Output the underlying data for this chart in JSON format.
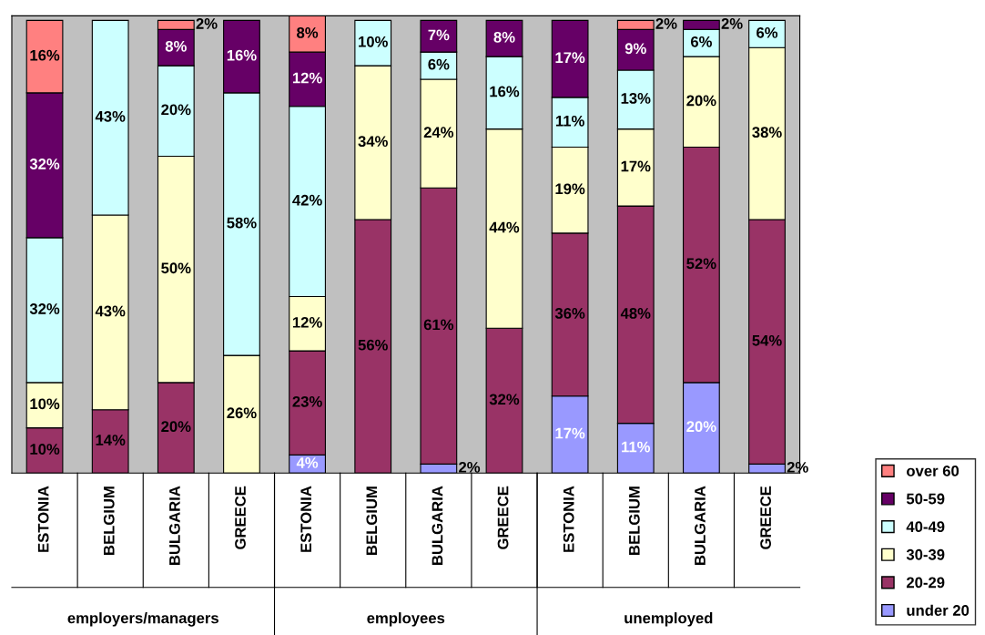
{
  "chart_data": {
    "type": "bar",
    "stacked": true,
    "categories": [
      "ESTONIA",
      "BELGIUM",
      "BULGARIA",
      "GREECE",
      "ESTONIA",
      "BELGIUM",
      "BULGARIA",
      "GREECE",
      "ESTONIA",
      "BELGIUM",
      "BULGARIA",
      "GREECE"
    ],
    "annotations": [
      "employers/managers",
      "employees",
      "unemployed"
    ],
    "ylim": [
      0,
      101
    ],
    "tick_labels": "x",
    "grid": false,
    "legend": "bottom right",
    "series": [
      {
        "name": "under 20",
        "color": "#9999ff",
        "values": [
          null,
          null,
          null,
          null,
          4,
          null,
          2,
          null,
          17,
          11,
          20,
          2
        ],
        "value_labels": [
          null,
          null,
          null,
          null,
          "4%",
          null,
          "2%",
          null,
          "17%",
          "11%",
          "20%",
          "2%"
        ]
      },
      {
        "name": "20-29",
        "color": "#993366",
        "values": [
          10,
          14,
          20,
          null,
          23,
          56,
          61,
          32,
          36,
          48,
          52,
          54
        ],
        "value_labels": [
          "10%",
          "14%",
          "20%",
          null,
          "23%",
          "56%",
          "61%",
          "32%",
          "36%",
          "48%",
          "52%",
          "54%"
        ]
      },
      {
        "name": "30-39",
        "color": "#ffffcc",
        "values": [
          10,
          43,
          50,
          26,
          12,
          34,
          24,
          44,
          19,
          17,
          20,
          38
        ],
        "value_labels": [
          "10%",
          "43%",
          "50%",
          "26%",
          "12%",
          "34%",
          "24%",
          "44%",
          "19%",
          "17%",
          "20%",
          "38%"
        ]
      },
      {
        "name": "40-49",
        "color": "#ccffff",
        "values": [
          32,
          43,
          20,
          58,
          42,
          10,
          6,
          16,
          11,
          13,
          6,
          6
        ],
        "value_labels": [
          "32%",
          "43%",
          "20%",
          "58%",
          "42%",
          "10%",
          "6%",
          "16%",
          "11%",
          "13%",
          "6%",
          "6%"
        ]
      },
      {
        "name": "50-59",
        "color": "#660066",
        "values": [
          32,
          null,
          8,
          16,
          12,
          null,
          7,
          8,
          17,
          9,
          2,
          null
        ],
        "value_labels": [
          "32%",
          null,
          "8%",
          "16%",
          "12%",
          null,
          "7%",
          "8%",
          "17%",
          "9%",
          "2%",
          null
        ]
      },
      {
        "name": "over 60",
        "color": "#ff8080",
        "values": [
          16,
          null,
          2,
          null,
          8,
          null,
          null,
          null,
          null,
          2,
          null,
          null
        ],
        "value_labels": [
          "16%",
          null,
          "2%",
          null,
          "8%",
          null,
          null,
          null,
          null,
          "2%",
          null,
          null
        ]
      }
    ]
  }
}
